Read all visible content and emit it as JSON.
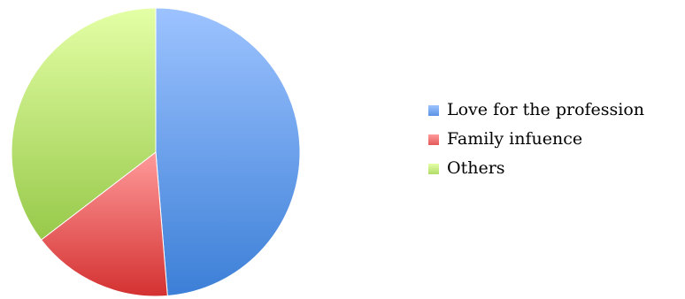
{
  "chart_data": {
    "type": "pie",
    "start_angle_deg": 0,
    "direction": "clockwise",
    "legend_position": "right",
    "slices": [
      {
        "label": "Love for the profession",
        "value": 48.7
      },
      {
        "label": "Family infuence",
        "value": 15.9
      },
      {
        "label": "Others",
        "value": 35.4
      }
    ],
    "colors": {
      "slice_light": [
        "#9dc3ff",
        "#ff9a9a",
        "#e4ffa6"
      ],
      "slice_dark": [
        "#3c7fd7",
        "#d43131",
        "#97c94a"
      ],
      "swatch": [
        "#5b93e3",
        "#e35a5a",
        "#b1db6a"
      ]
    }
  }
}
